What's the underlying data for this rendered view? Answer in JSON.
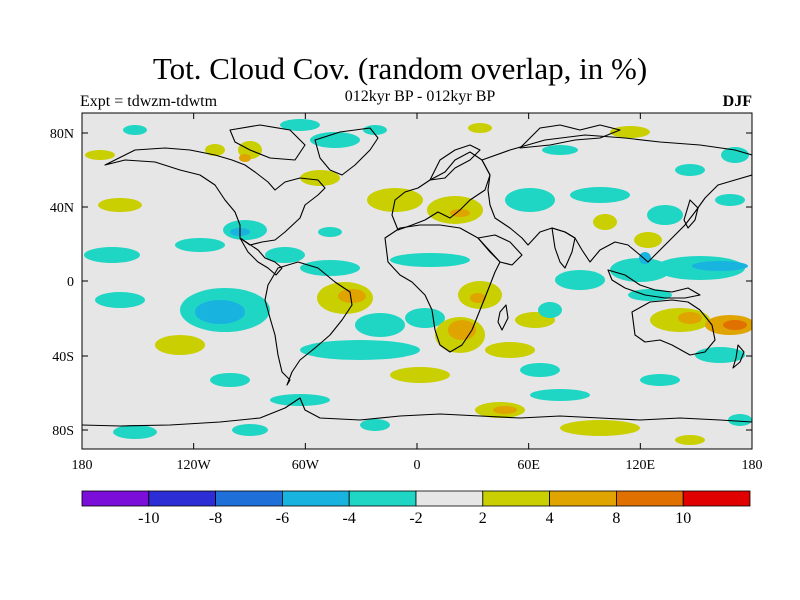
{
  "title": "Tot. Cloud Cov. (random overlap, in %)",
  "subtitle": "012kyr BP - 012kyr BP",
  "left_label": "Expt = tdwzm-tdwtm",
  "right_label": "DJF",
  "lon_ticks": [
    "180",
    "120W",
    "60W",
    "0",
    "60E",
    "120E",
    "180"
  ],
  "lat_ticks": [
    "80N",
    "40N",
    "0",
    "40S",
    "80S"
  ],
  "colorbar": {
    "colors": [
      "#7b0fd9",
      "#2d2dd6",
      "#1f6fd8",
      "#19b3e0",
      "#1fd5c3",
      "#e6e6e6",
      "#c9cf00",
      "#e0a400",
      "#e07000",
      "#e00000"
    ],
    "labels": [
      "-10",
      "-8",
      "-6",
      "-4",
      "-2",
      "2",
      "4",
      "8",
      "10"
    ]
  },
  "colors": {
    "background_field": "#e6e6e6",
    "coast": "#000000"
  }
}
